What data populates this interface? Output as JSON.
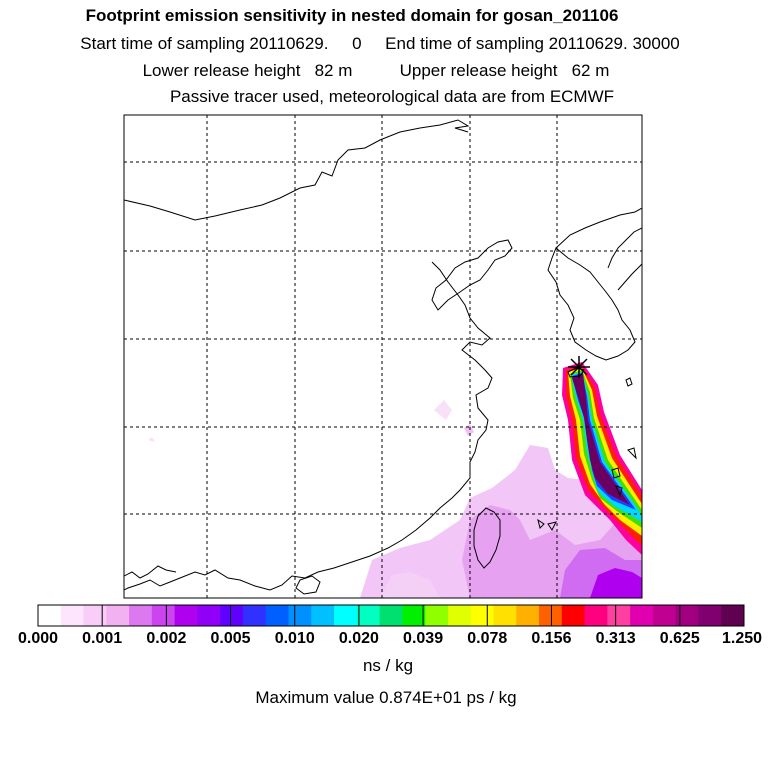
{
  "title": "Footprint emission sensitivity in nested domain for gosan_201106",
  "sampling_line": "Start time of sampling 20110629.     0     End time of sampling 20110629. 30000",
  "release_line": "Lower release height   82 m          Upper release height   62 m",
  "tracer_line": "Passive tracer used, meteorological data are from ECMWF",
  "map": {
    "station_marker": "receptor-star-icon",
    "colors": {
      "coast": "#000000",
      "grid": "#000000",
      "plume_low": "#f0c8f8",
      "plume_mid": "#d678f0",
      "plume_high": "#b000f0",
      "plume_peak": "#6a0060"
    }
  },
  "colorbar": {
    "colors": [
      "#ffffff",
      "#fde6fd",
      "#f8cdf8",
      "#f2b2f2",
      "#dc78f0",
      "#cc44f0",
      "#b000f0",
      "#9000f8",
      "#6000ff",
      "#3030ff",
      "#0060ff",
      "#0090ff",
      "#00c0ff",
      "#00ffff",
      "#00ffc0",
      "#00e070",
      "#00f000",
      "#90ff00",
      "#e0ff00",
      "#ffff00",
      "#ffe000",
      "#ffb000",
      "#ff6000",
      "#ff0000",
      "#ff0080",
      "#ff40a0",
      "#e000b0",
      "#c00090",
      "#a00080",
      "#800070",
      "#600050"
    ],
    "tick_labels": [
      "0.000",
      "0.001",
      "0.002",
      "0.005",
      "0.010",
      "0.020",
      "0.039",
      "0.078",
      "0.156",
      "0.313",
      "0.625",
      "1.250"
    ],
    "units": "ns / kg"
  },
  "max_value_text": "Maximum value  0.874E+01 ps / kg"
}
